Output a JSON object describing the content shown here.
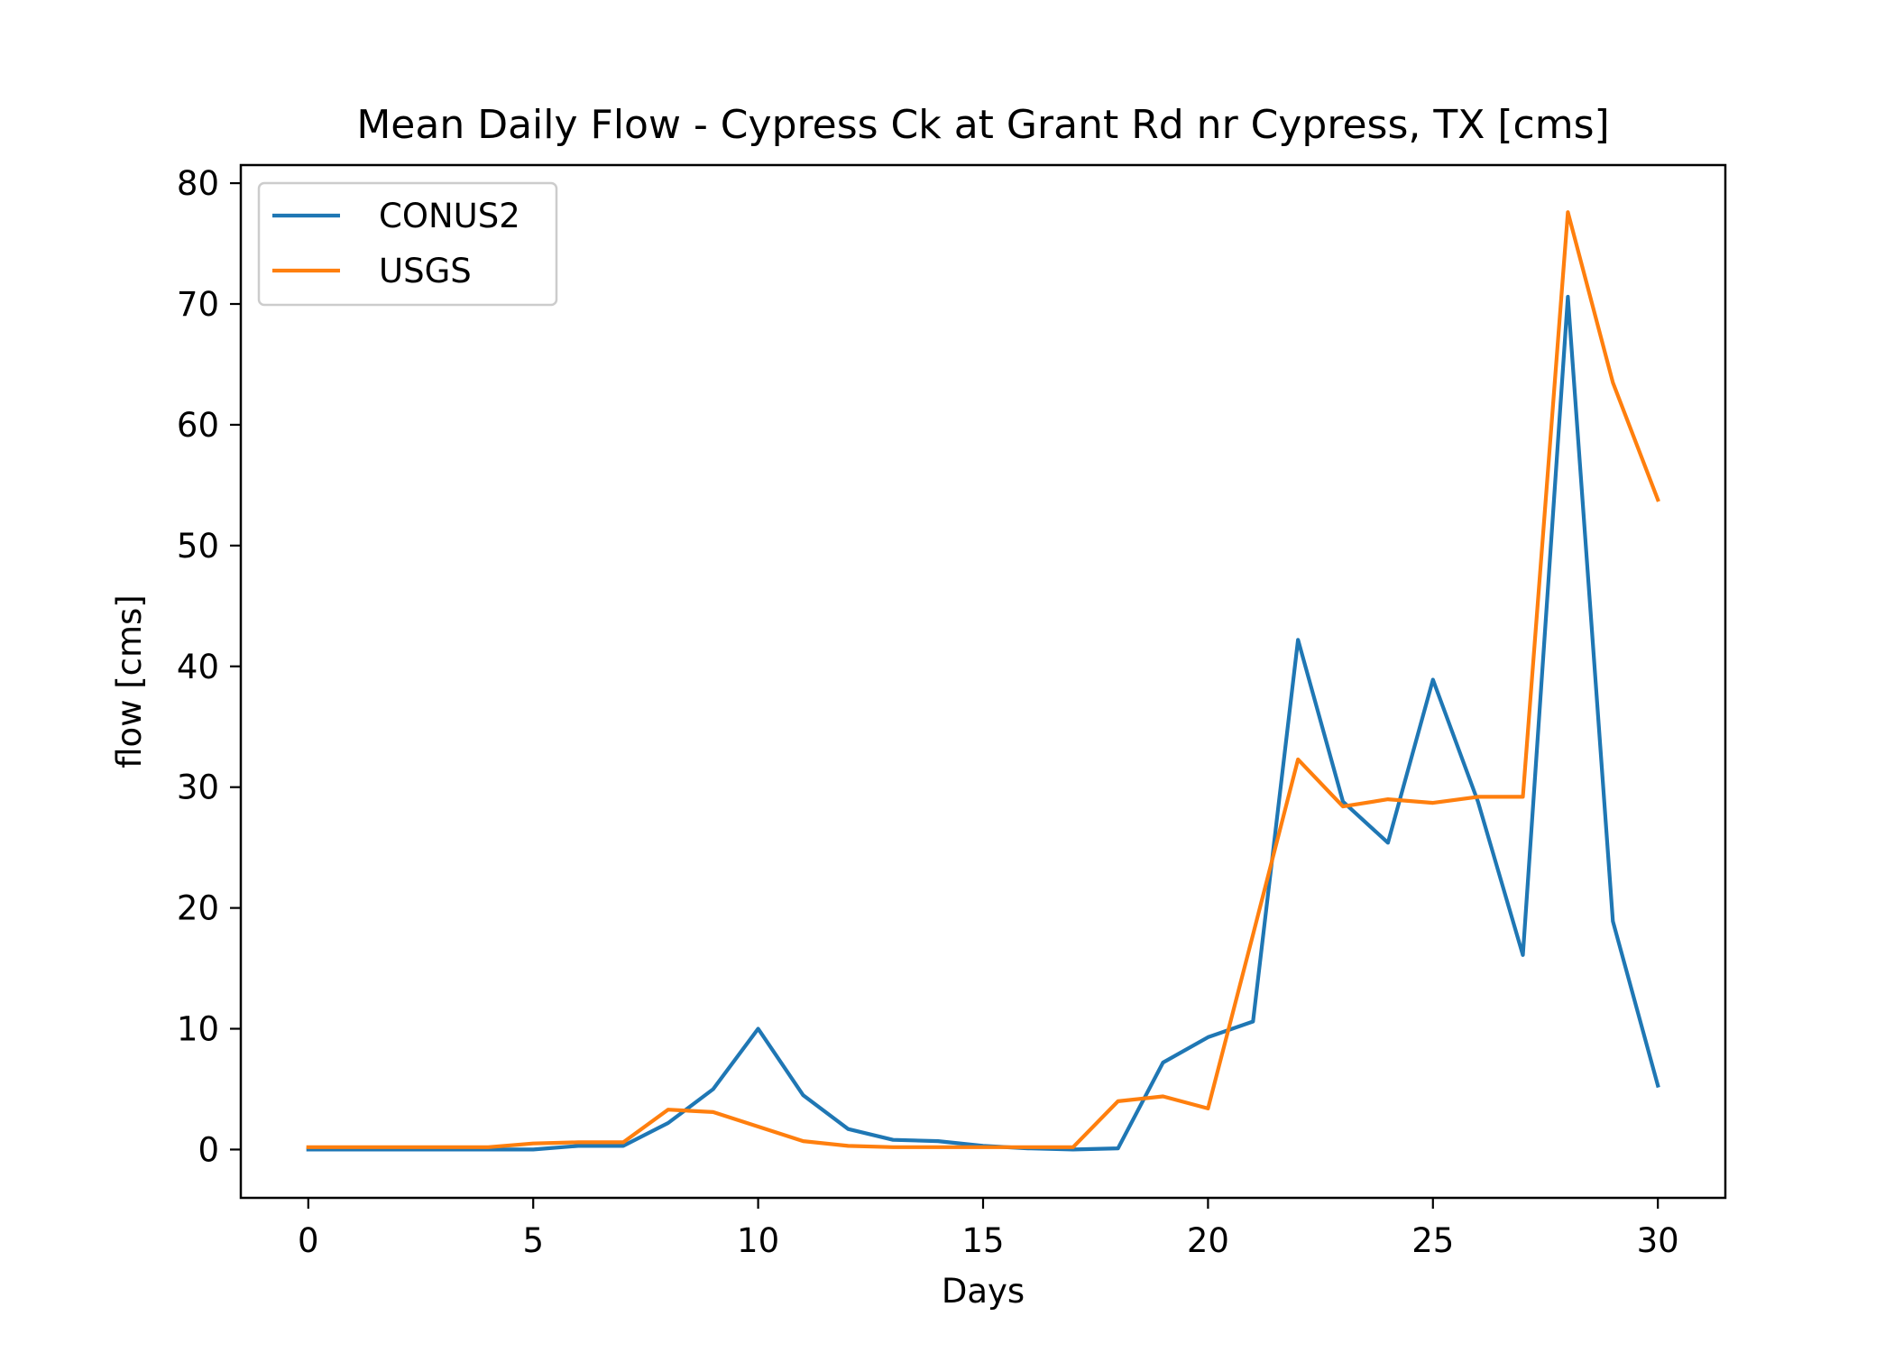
{
  "chart_data": {
    "type": "line",
    "title": "Mean Daily Flow - Cypress Ck at Grant Rd nr Cypress, TX [cms]",
    "xlabel": "Days",
    "ylabel": "flow [cms]",
    "xlim": [
      -1.5,
      31.5
    ],
    "ylim": [
      -4,
      81.5
    ],
    "xticks": [
      0,
      5,
      10,
      15,
      20,
      25,
      30
    ],
    "yticks": [
      0,
      10,
      20,
      30,
      40,
      50,
      60,
      70,
      80
    ],
    "grid": false,
    "legend_position": "top-left",
    "x": [
      0,
      1,
      2,
      3,
      4,
      5,
      6,
      7,
      8,
      9,
      10,
      11,
      12,
      13,
      14,
      15,
      16,
      17,
      18,
      19,
      20,
      21,
      22,
      23,
      24,
      25,
      26,
      27,
      28,
      29,
      30
    ],
    "series": [
      {
        "name": "CONUS2",
        "color": "#1f77b4",
        "values": [
          0.0,
          0.0,
          0.0,
          0.0,
          0.0,
          0.0,
          0.3,
          0.3,
          2.2,
          5.0,
          10.0,
          4.5,
          1.7,
          0.8,
          0.7,
          0.3,
          0.1,
          0.0,
          0.1,
          7.2,
          9.3,
          10.6,
          42.2,
          28.8,
          25.4,
          38.9,
          28.8,
          16.1,
          70.6,
          18.9,
          5.3
        ]
      },
      {
        "name": "USGS",
        "color": "#ff7f0e",
        "values": [
          0.2,
          0.2,
          0.2,
          0.2,
          0.2,
          0.5,
          0.6,
          0.6,
          3.3,
          3.1,
          1.9,
          0.7,
          0.3,
          0.2,
          0.2,
          0.2,
          0.2,
          0.2,
          4.0,
          4.4,
          3.4,
          17.8,
          32.3,
          28.4,
          29.0,
          28.7,
          29.2,
          29.2,
          77.6,
          63.5,
          53.8
        ]
      }
    ]
  }
}
